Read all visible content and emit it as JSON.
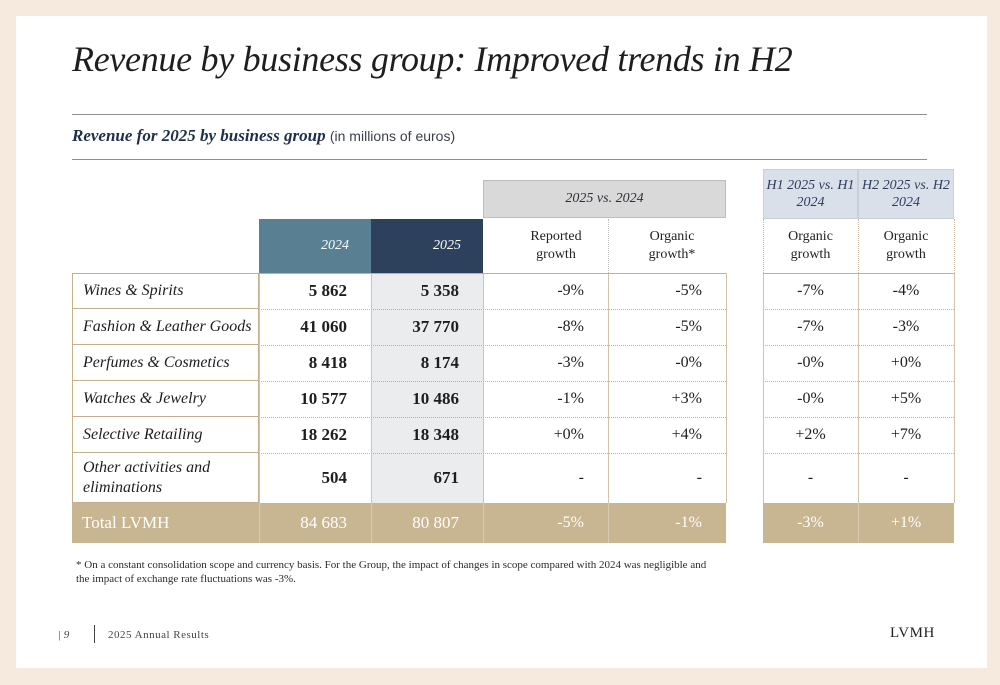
{
  "title": "Revenue by business group: Improved trends in H2",
  "subtitle": {
    "main": "Revenue for 2025 by business group",
    "units": "(in millions of euros)"
  },
  "table": {
    "group_header": "2025 vs. 2024",
    "half_headers": [
      "H1 2025 vs. H1 2024",
      "H2 2025 vs. H2 2024"
    ],
    "columns": {
      "y2024": "2024",
      "y2025": "2025",
      "reported": "Reported growth",
      "organic": "Organic growth*",
      "h1_organic": "Organic growth",
      "h2_organic": "Organic growth"
    },
    "rows": [
      {
        "label": "Wines & Spirits",
        "y2024": "5 862",
        "y2025": "5 358",
        "reported": "-9%",
        "organic": "-5%",
        "h1": "-7%",
        "h2": "-4%"
      },
      {
        "label": "Fashion & Leather Goods",
        "y2024": "41 060",
        "y2025": "37 770",
        "reported": "-8%",
        "organic": "-5%",
        "h1": "-7%",
        "h2": "-3%"
      },
      {
        "label": "Perfumes & Cosmetics",
        "y2024": "8 418",
        "y2025": "8 174",
        "reported": "-3%",
        "organic": "-0%",
        "h1": "-0%",
        "h2": "+0%"
      },
      {
        "label": "Watches & Jewelry",
        "y2024": "10 577",
        "y2025": "10 486",
        "reported": "-1%",
        "organic": "+3%",
        "h1": "-0%",
        "h2": "+5%"
      },
      {
        "label": "Selective Retailing",
        "y2024": "18 262",
        "y2025": "18 348",
        "reported": "+0%",
        "organic": "+4%",
        "h1": "+2%",
        "h2": "+7%"
      },
      {
        "label": "Other activities and eliminations",
        "y2024": "504",
        "y2025": "671",
        "reported": "-",
        "organic": "-",
        "h1": "-",
        "h2": "-"
      }
    ],
    "total": {
      "label": "Total LVMH",
      "y2024": "84 683",
      "y2025": "80 807",
      "reported": "-5%",
      "organic": "-1%",
      "h1": "-3%",
      "h2": "+1%"
    }
  },
  "footnote": "* On a constant consolidation scope and currency basis. For the Group, the impact of changes in scope compared with 2024 was negligible and the impact of exchange rate fluctuations was -3%.",
  "footer": {
    "page": "| 9",
    "text": "2025 Annual Results",
    "brand": "LVMH"
  },
  "colors": {
    "background": "#f6e9de",
    "col2024": "#587f92",
    "col2025": "#2d405c",
    "total": "#c8b592",
    "group_header": "#d9d9d9",
    "half_header": "#d9e0ea"
  }
}
